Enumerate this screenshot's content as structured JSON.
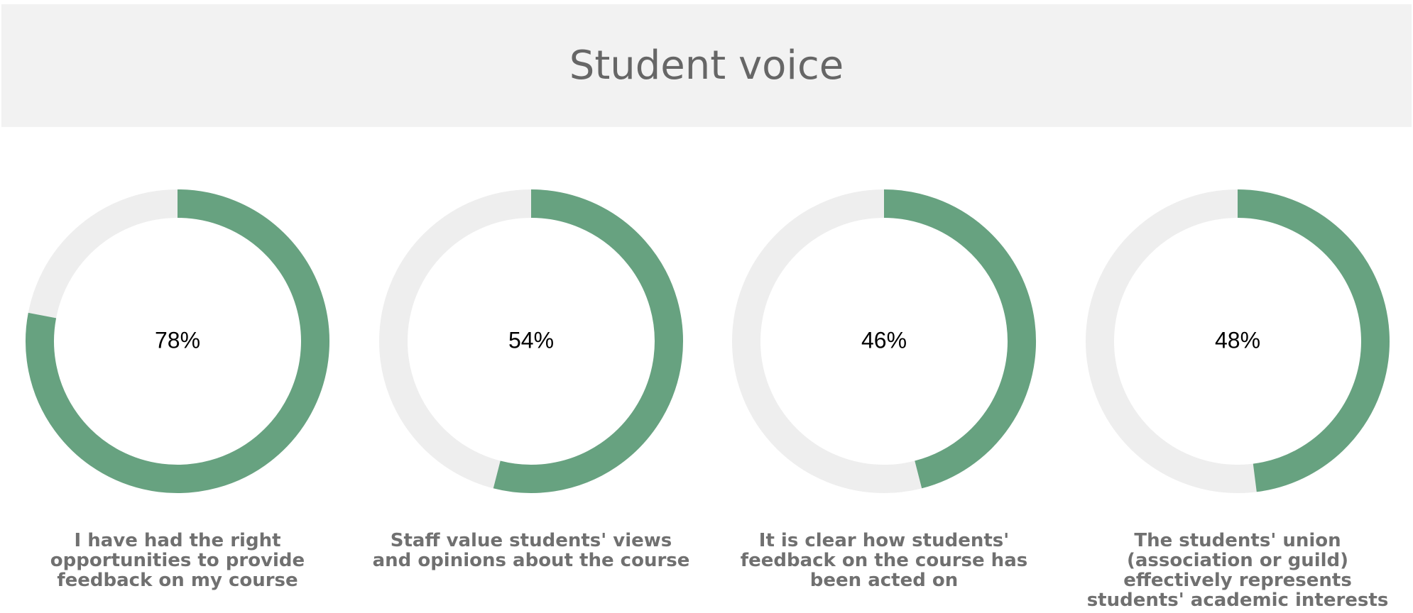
{
  "header": {
    "title": "Student voice"
  },
  "colors": {
    "filled": "#67a280",
    "track": "#eeeeee",
    "header_bg": "#f2f2f2",
    "title": "#666666",
    "caption": "#707070"
  },
  "chart_data": [
    {
      "type": "pie",
      "variant": "donut",
      "value_percent": 78,
      "value_label": "78%",
      "caption": "I have had the right opportunities to provide feedback on my course"
    },
    {
      "type": "pie",
      "variant": "donut",
      "value_percent": 54,
      "value_label": "54%",
      "caption": "Staff value students' views and opinions about the course"
    },
    {
      "type": "pie",
      "variant": "donut",
      "value_percent": 46,
      "value_label": "46%",
      "caption": "It is clear how students' feedback on the course has been acted on"
    },
    {
      "type": "pie",
      "variant": "donut",
      "value_percent": 48,
      "value_label": "48%",
      "caption": "The students' union (association or guild) effectively represents students' academic interests"
    }
  ]
}
